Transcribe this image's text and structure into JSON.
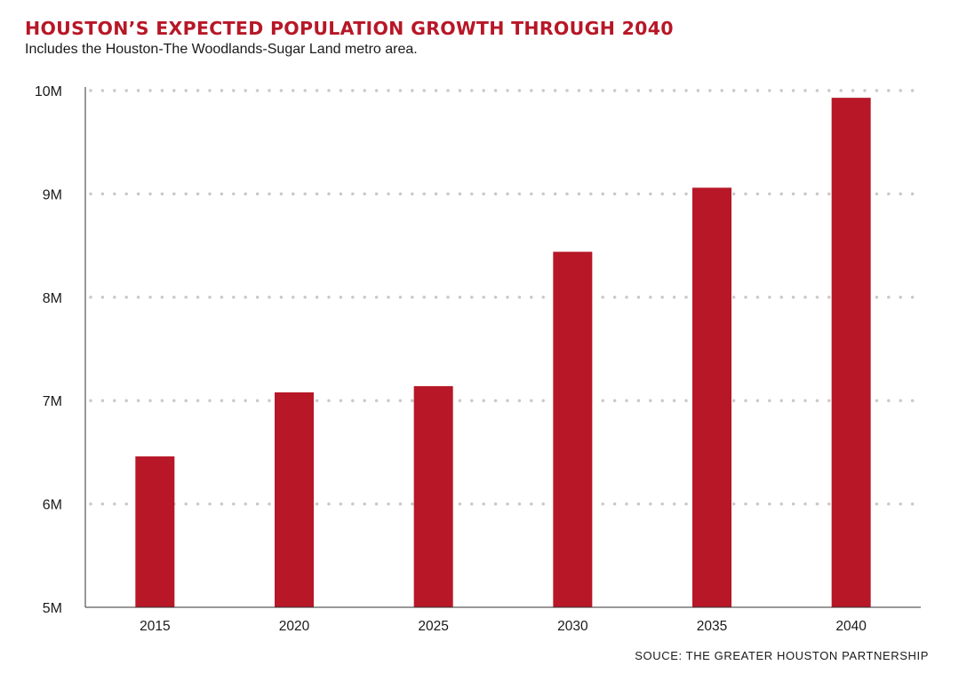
{
  "title": "HOUSTON’S EXPECTED POPULATION GROWTH THROUGH 2040",
  "subtitle": "Includes the Houston-The Woodlands-Sugar Land metro area.",
  "source": "SOUCE: THE GREATER HOUSTON PARTNERSHIP",
  "colors": {
    "bar": "#b71727",
    "title": "#b71727",
    "grid": "#c9c9c9",
    "axis": "#333333"
  },
  "chart_data": {
    "type": "bar",
    "title": "HOUSTON’S EXPECTED POPULATION GROWTH THROUGH 2040",
    "subtitle": "Includes the Houston-The Woodlands-Sugar Land metro area.",
    "categories": [
      "2015",
      "2020",
      "2025",
      "2030",
      "2035",
      "2040"
    ],
    "values": [
      6.46,
      7.08,
      7.14,
      8.44,
      9.06,
      9.93
    ],
    "unit": "millions",
    "xlabel": "",
    "ylabel": "",
    "ylim": [
      5,
      10
    ],
    "yticks": [
      5,
      6,
      7,
      8,
      9,
      10
    ],
    "ytick_labels": [
      "5M",
      "6M",
      "7M",
      "8M",
      "9M",
      "10M"
    ],
    "grid": "dotted horizontal",
    "legend": "none"
  }
}
